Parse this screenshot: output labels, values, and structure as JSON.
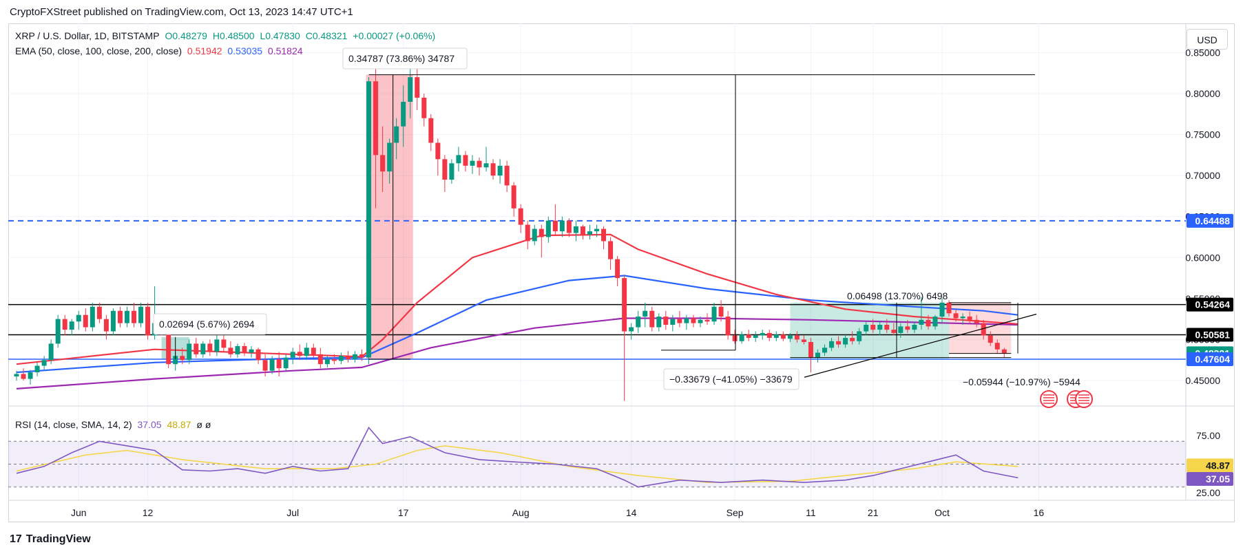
{
  "header": {
    "title": "CryptoFXStreet published on TradingView.com, Oct 13, 2023 14:47 UTC+1"
  },
  "legend": {
    "symbol": "XRP / U.S. Dollar, 1D, BITSTAMP",
    "open": "O0.48279",
    "high": "H0.48500",
    "low": "L0.47830",
    "close": "C0.48321",
    "change": "+0.00027 (+0.06%)",
    "ema_label": "EMA (50, close, 100, close, 200, close)",
    "ema50": "0.51942",
    "ema100": "0.53035",
    "ema200": "0.51824",
    "rsi_label": "RSI (14, close, SMA, 14, 2)",
    "rsi_value": "37.05",
    "rsi_sma": "48.87",
    "rsi_extra": "ø  ø"
  },
  "currency_button": "USD",
  "footer": {
    "brand": "TradingView",
    "logo": "17"
  },
  "colors": {
    "up": "#089981",
    "down": "#f23645",
    "ema50": "#f23645",
    "ema100": "#2962ff",
    "ema200": "#9c27b0",
    "dashed_level": "#2962ff",
    "rsi": "#7e57c2",
    "rsi_sma": "#f5d64a"
  },
  "chart_data": {
    "type": "candlestick",
    "title": "XRP / U.S. Dollar, 1D, BITSTAMP",
    "x_ticks": [
      "Jun",
      "12",
      "Jul",
      "17",
      "Aug",
      "14",
      "Sep",
      "11",
      "21",
      "Oct",
      "16"
    ],
    "y_ticks": [
      "0.85000",
      "0.80000",
      "0.75000",
      "0.70000",
      "0.65000",
      "0.60000",
      "0.55000",
      "0.50000",
      "0.45000"
    ],
    "ylim": [
      0.42,
      0.86
    ],
    "grid": true,
    "price_labels": [
      {
        "value": 0.64488,
        "text": "0.64488",
        "color": "#2962ff"
      },
      {
        "value": 0.54264,
        "text": "0.54264",
        "color": "#000000"
      },
      {
        "value": 0.50581,
        "text": "0.50581",
        "color": "#000000"
      },
      {
        "value": 0.48321,
        "text": "0.48321",
        "color": "#089981"
      },
      {
        "value": 0.47604,
        "text": "0.47604",
        "color": "#2962ff"
      }
    ],
    "horizontal_levels": [
      {
        "value": 0.64488,
        "style": "dashed"
      },
      {
        "value": 0.54264,
        "style": "solid"
      },
      {
        "value": 0.50581,
        "style": "solid"
      },
      {
        "value": 0.47604,
        "style": "solid"
      }
    ],
    "annotations": [
      {
        "text": "0.34787 (73.86%) 34787"
      },
      {
        "text": "0.02694 (5.67%) 2694"
      },
      {
        "text": "0.06498 (13.70%) 6498"
      },
      {
        "text": "−0.33679 (−41.05%) −33679"
      },
      {
        "text": "−0.05944 (−10.97%) −5944"
      }
    ],
    "candles": [
      [
        0.455,
        0.462,
        0.45,
        0.458
      ],
      [
        0.458,
        0.465,
        0.45,
        0.452
      ],
      [
        0.452,
        0.463,
        0.445,
        0.46
      ],
      [
        0.46,
        0.472,
        0.455,
        0.468
      ],
      [
        0.468,
        0.48,
        0.462,
        0.475
      ],
      [
        0.475,
        0.5,
        0.47,
        0.495
      ],
      [
        0.495,
        0.53,
        0.49,
        0.525
      ],
      [
        0.525,
        0.53,
        0.505,
        0.512
      ],
      [
        0.512,
        0.525,
        0.505,
        0.522
      ],
      [
        0.522,
        0.535,
        0.512,
        0.53
      ],
      [
        0.53,
        0.538,
        0.51,
        0.515
      ],
      [
        0.515,
        0.545,
        0.51,
        0.54
      ],
      [
        0.54,
        0.545,
        0.52,
        0.525
      ],
      [
        0.525,
        0.53,
        0.5,
        0.51
      ],
      [
        0.51,
        0.538,
        0.505,
        0.535
      ],
      [
        0.535,
        0.54,
        0.515,
        0.52
      ],
      [
        0.52,
        0.54,
        0.515,
        0.535
      ],
      [
        0.535,
        0.545,
        0.515,
        0.52
      ],
      [
        0.52,
        0.545,
        0.515,
        0.54
      ],
      [
        0.54,
        0.545,
        0.5,
        0.505
      ],
      [
        0.505,
        0.565,
        0.5,
        0.52
      ],
      [
        0.52,
        0.53,
        0.505,
        0.51
      ],
      [
        0.51,
        0.512,
        0.465,
        0.47
      ],
      [
        0.47,
        0.485,
        0.462,
        0.48
      ],
      [
        0.48,
        0.49,
        0.47,
        0.475
      ],
      [
        0.475,
        0.5,
        0.47,
        0.495
      ],
      [
        0.495,
        0.502,
        0.478,
        0.482
      ],
      [
        0.482,
        0.498,
        0.478,
        0.495
      ],
      [
        0.495,
        0.5,
        0.48,
        0.485
      ],
      [
        0.485,
        0.505,
        0.48,
        0.5
      ],
      [
        0.5,
        0.505,
        0.485,
        0.49
      ],
      [
        0.49,
        0.498,
        0.478,
        0.482
      ],
      [
        0.482,
        0.495,
        0.478,
        0.492
      ],
      [
        0.492,
        0.496,
        0.48,
        0.484
      ],
      [
        0.484,
        0.492,
        0.478,
        0.488
      ],
      [
        0.488,
        0.49,
        0.47,
        0.475
      ],
      [
        0.475,
        0.482,
        0.455,
        0.462
      ],
      [
        0.462,
        0.48,
        0.458,
        0.476
      ],
      [
        0.476,
        0.485,
        0.455,
        0.465
      ],
      [
        0.465,
        0.482,
        0.462,
        0.478
      ],
      [
        0.478,
        0.49,
        0.47,
        0.485
      ],
      [
        0.485,
        0.494,
        0.475,
        0.48
      ],
      [
        0.48,
        0.496,
        0.476,
        0.49
      ],
      [
        0.49,
        0.495,
        0.478,
        0.482
      ],
      [
        0.482,
        0.49,
        0.465,
        0.47
      ],
      [
        0.47,
        0.48,
        0.466,
        0.476
      ],
      [
        0.476,
        0.482,
        0.47,
        0.474
      ],
      [
        0.474,
        0.484,
        0.47,
        0.48
      ],
      [
        0.48,
        0.486,
        0.472,
        0.476
      ],
      [
        0.476,
        0.486,
        0.472,
        0.482
      ],
      [
        0.482,
        0.488,
        0.474,
        0.478
      ],
      [
        0.478,
        0.82,
        0.47,
        0.815
      ],
      [
        0.815,
        0.84,
        0.66,
        0.725
      ],
      [
        0.725,
        0.76,
        0.68,
        0.705
      ],
      [
        0.705,
        0.745,
        0.69,
        0.74
      ],
      [
        0.74,
        0.77,
        0.72,
        0.76
      ],
      [
        0.76,
        0.81,
        0.735,
        0.79
      ],
      [
        0.79,
        0.845,
        0.77,
        0.82
      ],
      [
        0.82,
        0.83,
        0.78,
        0.795
      ],
      [
        0.795,
        0.8,
        0.76,
        0.77
      ],
      [
        0.77,
        0.775,
        0.73,
        0.74
      ],
      [
        0.74,
        0.745,
        0.7,
        0.72
      ],
      [
        0.72,
        0.725,
        0.68,
        0.695
      ],
      [
        0.695,
        0.72,
        0.69,
        0.715
      ],
      [
        0.715,
        0.735,
        0.705,
        0.725
      ],
      [
        0.725,
        0.73,
        0.705,
        0.712
      ],
      [
        0.712,
        0.725,
        0.702,
        0.718
      ],
      [
        0.718,
        0.722,
        0.7,
        0.71
      ],
      [
        0.71,
        0.735,
        0.705,
        0.715
      ],
      [
        0.715,
        0.72,
        0.695,
        0.7
      ],
      [
        0.7,
        0.72,
        0.69,
        0.712
      ],
      [
        0.712,
        0.718,
        0.68,
        0.688
      ],
      [
        0.688,
        0.692,
        0.65,
        0.66
      ],
      [
        0.66,
        0.665,
        0.63,
        0.64
      ],
      [
        0.64,
        0.645,
        0.61,
        0.62
      ],
      [
        0.62,
        0.64,
        0.615,
        0.635
      ],
      [
        0.635,
        0.64,
        0.6,
        0.625
      ],
      [
        0.625,
        0.65,
        0.618,
        0.645
      ],
      [
        0.645,
        0.665,
        0.628,
        0.632
      ],
      [
        0.632,
        0.65,
        0.625,
        0.645
      ],
      [
        0.645,
        0.648,
        0.625,
        0.63
      ],
      [
        0.63,
        0.645,
        0.62,
        0.638
      ],
      [
        0.638,
        0.64,
        0.622,
        0.628
      ],
      [
        0.628,
        0.64,
        0.622,
        0.632
      ],
      [
        0.632,
        0.64,
        0.625,
        0.635
      ],
      [
        0.635,
        0.638,
        0.61,
        0.62
      ],
      [
        0.62,
        0.625,
        0.585,
        0.598
      ],
      [
        0.598,
        0.602,
        0.565,
        0.575
      ],
      [
        0.575,
        0.578,
        0.425,
        0.51
      ],
      [
        0.51,
        0.52,
        0.5,
        0.515
      ],
      [
        0.515,
        0.535,
        0.508,
        0.528
      ],
      [
        0.528,
        0.545,
        0.515,
        0.535
      ],
      [
        0.535,
        0.54,
        0.51,
        0.515
      ],
      [
        0.515,
        0.532,
        0.51,
        0.528
      ],
      [
        0.528,
        0.535,
        0.512,
        0.518
      ],
      [
        0.518,
        0.53,
        0.51,
        0.525
      ],
      [
        0.525,
        0.535,
        0.515,
        0.52
      ],
      [
        0.52,
        0.53,
        0.512,
        0.526
      ],
      [
        0.526,
        0.53,
        0.515,
        0.52
      ],
      [
        0.52,
        0.528,
        0.515,
        0.524
      ],
      [
        0.524,
        0.532,
        0.518,
        0.522
      ],
      [
        0.522,
        0.545,
        0.518,
        0.54
      ],
      [
        0.54,
        0.548,
        0.522,
        0.528
      ],
      [
        0.528,
        0.535,
        0.5,
        0.505
      ],
      [
        0.505,
        0.512,
        0.495,
        0.498
      ],
      [
        0.498,
        0.51,
        0.495,
        0.506
      ],
      [
        0.506,
        0.512,
        0.498,
        0.502
      ],
      [
        0.502,
        0.51,
        0.497,
        0.505
      ],
      [
        0.505,
        0.512,
        0.5,
        0.508
      ],
      [
        0.508,
        0.512,
        0.498,
        0.502
      ],
      [
        0.502,
        0.51,
        0.498,
        0.506
      ],
      [
        0.506,
        0.51,
        0.498,
        0.501
      ],
      [
        0.501,
        0.508,
        0.497,
        0.505
      ],
      [
        0.505,
        0.51,
        0.496,
        0.5
      ],
      [
        0.5,
        0.505,
        0.494,
        0.497
      ],
      [
        0.497,
        0.502,
        0.46,
        0.478
      ],
      [
        0.478,
        0.488,
        0.472,
        0.484
      ],
      [
        0.484,
        0.494,
        0.48,
        0.49
      ],
      [
        0.49,
        0.502,
        0.486,
        0.498
      ],
      [
        0.498,
        0.504,
        0.49,
        0.494
      ],
      [
        0.494,
        0.506,
        0.49,
        0.502
      ],
      [
        0.502,
        0.51,
        0.494,
        0.498
      ],
      [
        0.498,
        0.514,
        0.494,
        0.51
      ],
      [
        0.51,
        0.522,
        0.505,
        0.518
      ],
      [
        0.518,
        0.525,
        0.508,
        0.512
      ],
      [
        0.512,
        0.522,
        0.505,
        0.518
      ],
      [
        0.518,
        0.525,
        0.508,
        0.512
      ],
      [
        0.512,
        0.52,
        0.505,
        0.508
      ],
      [
        0.508,
        0.52,
        0.502,
        0.516
      ],
      [
        0.516,
        0.524,
        0.508,
        0.512
      ],
      [
        0.512,
        0.522,
        0.508,
        0.518
      ],
      [
        0.518,
        0.552,
        0.512,
        0.524
      ],
      [
        0.524,
        0.53,
        0.512,
        0.516
      ],
      [
        0.516,
        0.53,
        0.512,
        0.528
      ],
      [
        0.528,
        0.55,
        0.52,
        0.545
      ],
      [
        0.545,
        0.548,
        0.528,
        0.532
      ],
      [
        0.532,
        0.536,
        0.522,
        0.526
      ],
      [
        0.526,
        0.532,
        0.518,
        0.528
      ],
      [
        0.528,
        0.534,
        0.52,
        0.524
      ],
      [
        0.524,
        0.53,
        0.515,
        0.52
      ],
      [
        0.52,
        0.524,
        0.5,
        0.505
      ],
      [
        0.505,
        0.51,
        0.492,
        0.496
      ],
      [
        0.496,
        0.5,
        0.483,
        0.488
      ],
      [
        0.488,
        0.49,
        0.478,
        0.483
      ]
    ],
    "ema50": [
      [
        0,
        0.47
      ],
      [
        20,
        0.488
      ],
      [
        40,
        0.482
      ],
      [
        50,
        0.479
      ],
      [
        53,
        0.5
      ],
      [
        58,
        0.545
      ],
      [
        66,
        0.6
      ],
      [
        76,
        0.627
      ],
      [
        86,
        0.628
      ],
      [
        90,
        0.61
      ],
      [
        100,
        0.58
      ],
      [
        110,
        0.555
      ],
      [
        120,
        0.537
      ],
      [
        130,
        0.528
      ],
      [
        140,
        0.522
      ],
      [
        145,
        0.519
      ]
    ],
    "ema100": [
      [
        0,
        0.46
      ],
      [
        20,
        0.472
      ],
      [
        40,
        0.477
      ],
      [
        50,
        0.478
      ],
      [
        58,
        0.508
      ],
      [
        68,
        0.548
      ],
      [
        80,
        0.572
      ],
      [
        88,
        0.578
      ],
      [
        100,
        0.562
      ],
      [
        115,
        0.548
      ],
      [
        130,
        0.54
      ],
      [
        140,
        0.535
      ],
      [
        145,
        0.53
      ]
    ],
    "ema200": [
      [
        0,
        0.44
      ],
      [
        20,
        0.452
      ],
      [
        40,
        0.462
      ],
      [
        50,
        0.466
      ],
      [
        60,
        0.49
      ],
      [
        75,
        0.514
      ],
      [
        88,
        0.526
      ],
      [
        100,
        0.526
      ],
      [
        115,
        0.524
      ],
      [
        130,
        0.521
      ],
      [
        145,
        0.518
      ]
    ],
    "rsi": {
      "ylim": [
        20,
        85
      ],
      "y_ticks": [
        "75.00",
        "25.00"
      ],
      "band": [
        30,
        70
      ],
      "rsi_series": [
        [
          0,
          42
        ],
        [
          4,
          48
        ],
        [
          8,
          60
        ],
        [
          12,
          70
        ],
        [
          16,
          66
        ],
        [
          20,
          62
        ],
        [
          24,
          45
        ],
        [
          28,
          44
        ],
        [
          32,
          46
        ],
        [
          36,
          42
        ],
        [
          40,
          48
        ],
        [
          44,
          44
        ],
        [
          48,
          46
        ],
        [
          51,
          82
        ],
        [
          53,
          68
        ],
        [
          57,
          74
        ],
        [
          62,
          60
        ],
        [
          67,
          54
        ],
        [
          72,
          52
        ],
        [
          78,
          50
        ],
        [
          84,
          46
        ],
        [
          88,
          36
        ],
        [
          90,
          30
        ],
        [
          96,
          36
        ],
        [
          102,
          34
        ],
        [
          108,
          36
        ],
        [
          114,
          34
        ],
        [
          120,
          36
        ],
        [
          124,
          40
        ],
        [
          128,
          46
        ],
        [
          132,
          52
        ],
        [
          136,
          58
        ],
        [
          140,
          44
        ],
        [
          145,
          38
        ]
      ],
      "sma_series": [
        [
          0,
          44
        ],
        [
          10,
          58
        ],
        [
          16,
          62
        ],
        [
          24,
          54
        ],
        [
          36,
          46
        ],
        [
          46,
          46
        ],
        [
          52,
          50
        ],
        [
          58,
          62
        ],
        [
          62,
          66
        ],
        [
          70,
          60
        ],
        [
          80,
          48
        ],
        [
          90,
          40
        ],
        [
          100,
          34
        ],
        [
          112,
          35
        ],
        [
          120,
          40
        ],
        [
          130,
          46
        ],
        [
          136,
          52
        ],
        [
          145,
          48
        ]
      ]
    },
    "rsi_ticks": [
      "75.00",
      "25.00"
    ],
    "rsi_labels": [
      {
        "text": "48.87",
        "color": "#f5d64a"
      },
      {
        "text": "37.05",
        "color": "#7e57c2"
      }
    ]
  }
}
